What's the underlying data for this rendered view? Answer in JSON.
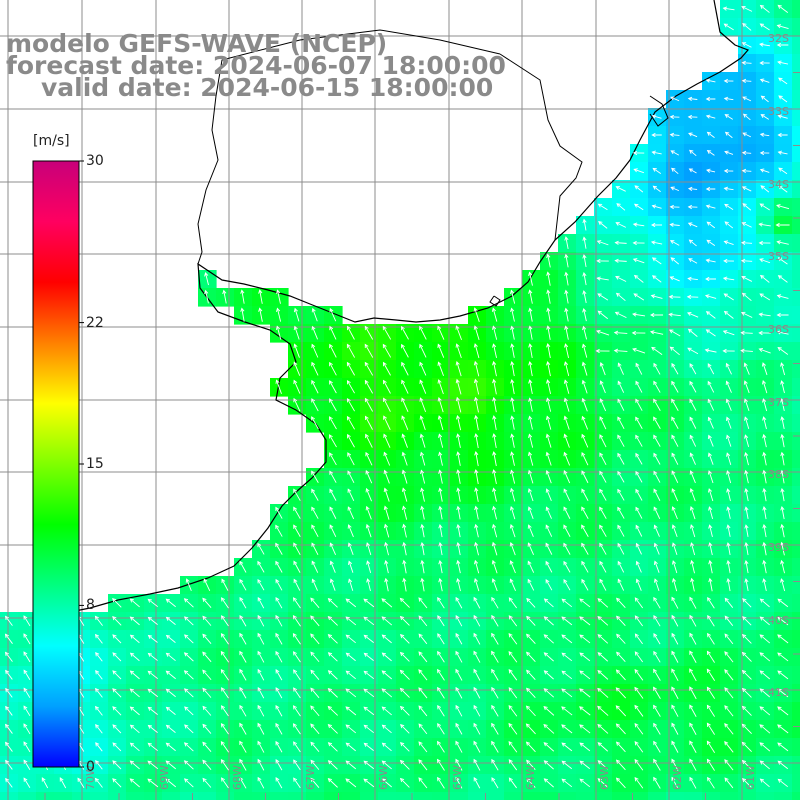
{
  "header": {
    "line1": "modelo GEFS-WAVE (NCEP)",
    "line2": "forecast date: 2024-06-07 18:00:00",
    "line3": "valid date: 2024-06-15 18:00:00"
  },
  "colorbar": {
    "unit": "[m/s]",
    "min": 0,
    "max": 30,
    "ticks": [
      {
        "value": 30,
        "label": "30"
      },
      {
        "value": 22,
        "label": "22"
      },
      {
        "value": 15,
        "label": "15"
      },
      {
        "value": 8,
        "label": "8"
      },
      {
        "value": 0,
        "label": "0"
      }
    ],
    "stops": [
      "#0000ff",
      "#00a0ff",
      "#00ffff",
      "#00ff80",
      "#00ff00",
      "#80ff00",
      "#ffff00",
      "#ff8000",
      "#ff0000",
      "#ff0060",
      "#c8007a"
    ]
  },
  "map": {
    "grid_color": "#8c8c8c",
    "coast_color": "#000000",
    "arrow_color": "#ffffff",
    "lat_labels": [
      "32S",
      "33S",
      "34S",
      "35S",
      "36S",
      "37S",
      "38S",
      "39S",
      "40S",
      "41S"
    ],
    "lon_labels": [
      "70W",
      "69W",
      "68W",
      "67W",
      "66W",
      "65W",
      "64W",
      "63W",
      "62W",
      "61W"
    ]
  }
}
